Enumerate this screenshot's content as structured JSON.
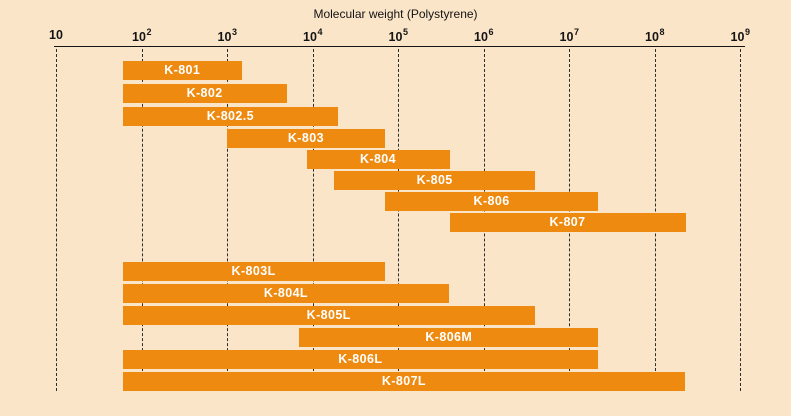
{
  "chart_data": {
    "type": "bar",
    "orientation": "horizontal_range",
    "title": "Molecular weight (Polystyrene)",
    "x_axis": {
      "scale": "log",
      "min": 10,
      "max": 1000000000,
      "grid": "dashed-vertical",
      "ticks": [
        {
          "label": "10",
          "exp": "",
          "log": 1
        },
        {
          "label": "10",
          "exp": "2",
          "log": 2
        },
        {
          "label": "10",
          "exp": "3",
          "log": 3
        },
        {
          "label": "10",
          "exp": "4",
          "log": 4
        },
        {
          "label": "10",
          "exp": "5",
          "log": 5
        },
        {
          "label": "10",
          "exp": "6",
          "log": 6
        },
        {
          "label": "10",
          "exp": "7",
          "log": 7
        },
        {
          "label": "10",
          "exp": "8",
          "log": 8
        },
        {
          "label": "10",
          "exp": "9",
          "log": 9
        }
      ]
    },
    "bars": [
      {
        "label": "K-801",
        "group": "standard",
        "mw_min": 60,
        "mw_max": 1500
      },
      {
        "label": "K-802",
        "group": "standard",
        "mw_min": 60,
        "mw_max": 5000
      },
      {
        "label": "K-802.5",
        "group": "standard",
        "mw_min": 60,
        "mw_max": 20000
      },
      {
        "label": "K-803",
        "group": "standard",
        "mw_min": 1000,
        "mw_max": 70000
      },
      {
        "label": "K-804",
        "group": "standard",
        "mw_min": 8500,
        "mw_max": 400000
      },
      {
        "label": "K-805",
        "group": "standard",
        "mw_min": 18000,
        "mw_max": 4000000
      },
      {
        "label": "K-806",
        "group": "standard",
        "mw_min": 70000,
        "mw_max": 22000000
      },
      {
        "label": "K-807",
        "group": "standard",
        "mw_min": 400000,
        "mw_max": 230000000
      },
      {
        "label": "K-803L",
        "group": "linear",
        "mw_min": 60,
        "mw_max": 70000
      },
      {
        "label": "K-804L",
        "group": "linear",
        "mw_min": 60,
        "mw_max": 400000
      },
      {
        "label": "K-805L",
        "group": "linear",
        "mw_min": 60,
        "mw_max": 4000000
      },
      {
        "label": "K-806M",
        "group": "linear",
        "mw_min": 7000,
        "mw_max": 22000000
      },
      {
        "label": "K-806L",
        "group": "linear",
        "mw_min": 60,
        "mw_max": 22000000
      },
      {
        "label": "K-807L",
        "group": "linear",
        "mw_min": 60,
        "mw_max": 230000000
      }
    ],
    "colors": {
      "background": "#FAE5C8",
      "bar": "#EE8A0F",
      "bar_label": "#FFFFFF",
      "axis": "#141414"
    }
  }
}
